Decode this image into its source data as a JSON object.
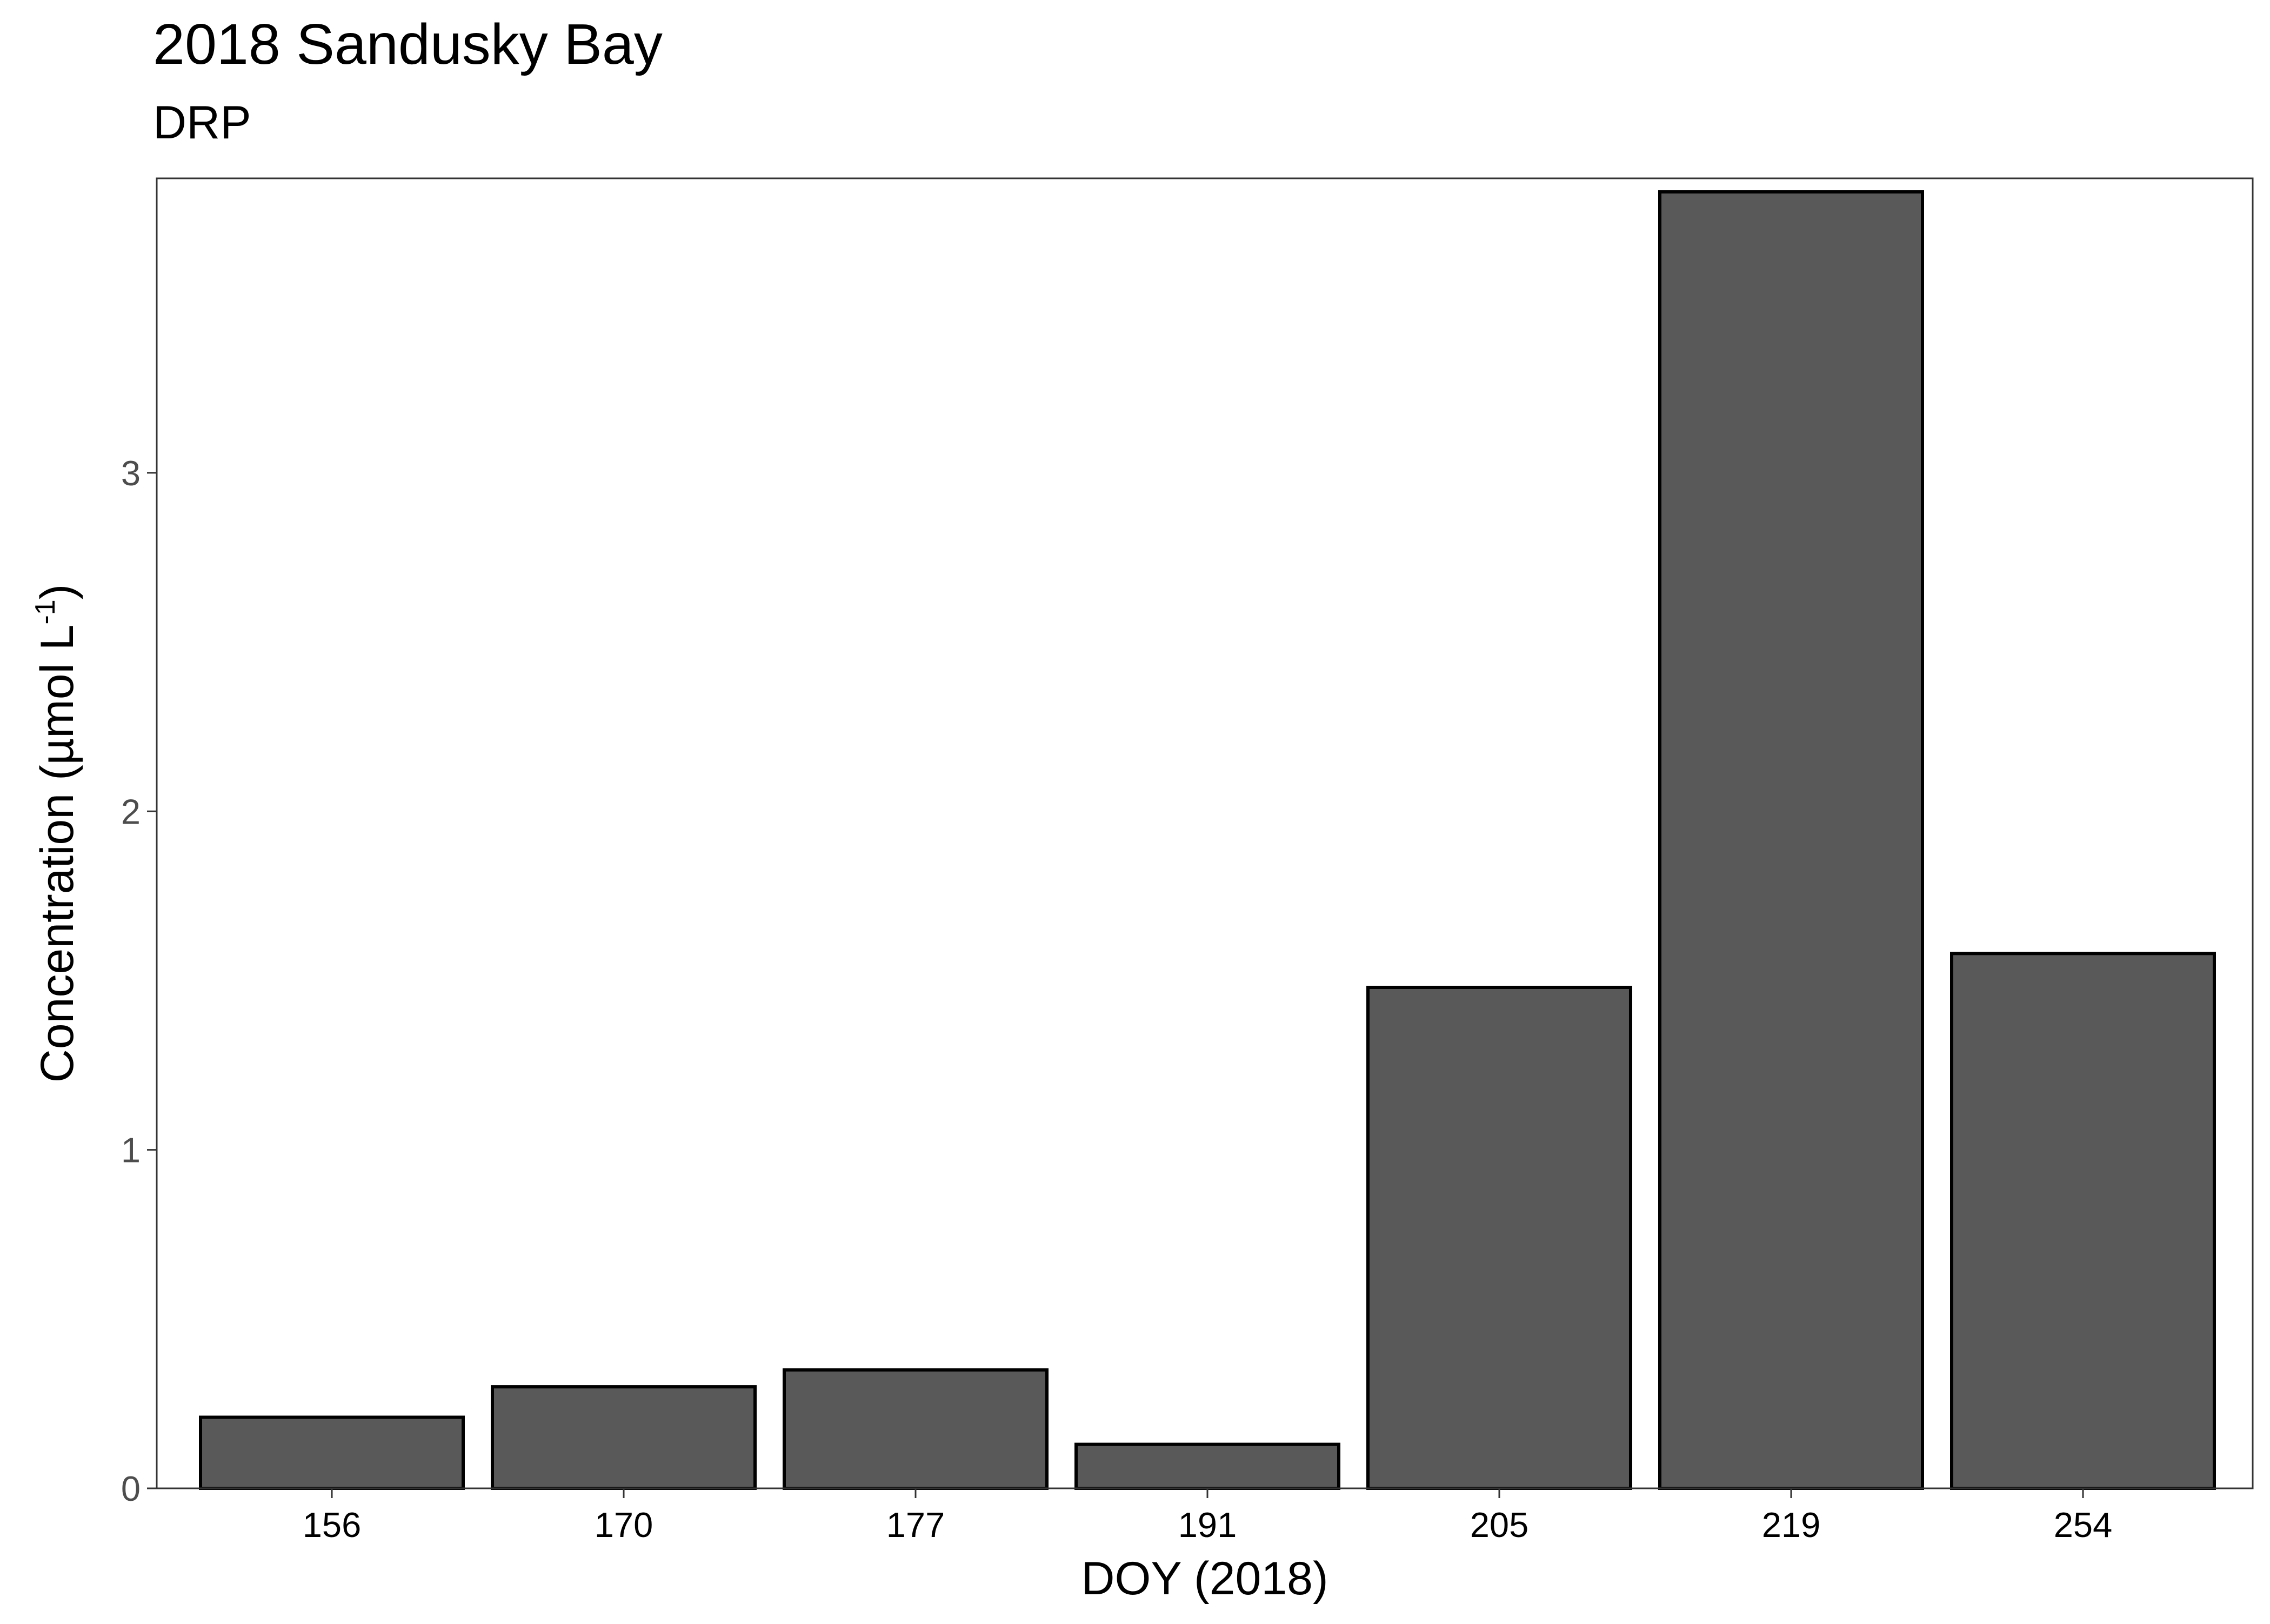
{
  "chart_data": {
    "type": "bar",
    "title": "2018 Sandusky Bay",
    "subtitle": "DRP",
    "xlabel": "DOY (2018)",
    "ylabel": "Concentration (µmol L",
    "ylabel_sup": "-1",
    "ylabel_close": ")",
    "categories": [
      "156",
      "170",
      "177",
      "191",
      "205",
      "219",
      "254"
    ],
    "values": [
      0.21,
      0.3,
      0.35,
      0.13,
      1.48,
      3.83,
      1.58
    ],
    "yticks": [
      0,
      1,
      2,
      3
    ],
    "ylim": [
      0,
      3.87
    ],
    "grid": false,
    "legend": "none",
    "colors": {
      "bar_fill": "#595959",
      "bar_stroke": "#000000",
      "panel_border": "#333333",
      "tick_text": "#4d4d4d"
    }
  }
}
